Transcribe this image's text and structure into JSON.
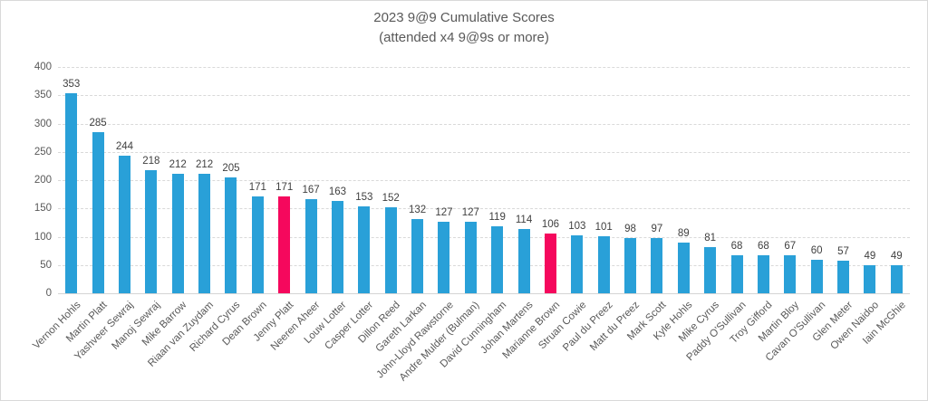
{
  "chart_data": {
    "type": "bar",
    "title": "2023 9@9 Cumulative Scores",
    "subtitle": "(attended x4 9@9s or more)",
    "categories": [
      "Vernon Hohls",
      "Martin Platt",
      "Yashveer Sewraj",
      "Manoj Sewraj",
      "Mike Barrow",
      "Riaan van Zuydam",
      "Richard Cyrus",
      "Dean Brown",
      "Jenny Platt",
      "Neeren Aheer",
      "Louw Lotter",
      "Casper Lotter",
      "Dillon Reed",
      "Gareth Larkan",
      "John-Lloyd Rawstorne",
      "Andre Mulder (Bulman)",
      "David Cunningham",
      "Johan Martens",
      "Marianne Brown",
      "Struan Cowie",
      "Paul du Preez",
      "Matt du Preez",
      "Mark Scott",
      "Kyle Hohls",
      "Mike Cyrus",
      "Paddy O'Sullivan",
      "Troy Gifford",
      "Martin Bloy",
      "Cavan O'Sullivan",
      "Glen Meter",
      "Owen Naidoo",
      "Iain McGhie"
    ],
    "values": [
      353,
      285,
      244,
      218,
      212,
      212,
      205,
      171,
      171,
      167,
      163,
      153,
      152,
      132,
      127,
      127,
      119,
      114,
      106,
      103,
      101,
      98,
      97,
      89,
      81,
      68,
      68,
      67,
      60,
      57,
      49,
      49
    ],
    "highlighted_categories": [
      "Jenny Platt",
      "Marianne Brown"
    ],
    "colors": {
      "bar_default": "#29A0D8",
      "bar_highlight": "#F5085D",
      "title_text": "#595959",
      "axis_text": "#595959",
      "data_label_text": "#404040",
      "gridline": "#D9D9D9"
    },
    "ylim": [
      0,
      400
    ],
    "yticks": [
      0,
      50,
      100,
      150,
      200,
      250,
      300,
      350,
      400
    ],
    "grid": true,
    "data_labels": true,
    "legend": "none",
    "xlabel": "",
    "ylabel": ""
  }
}
